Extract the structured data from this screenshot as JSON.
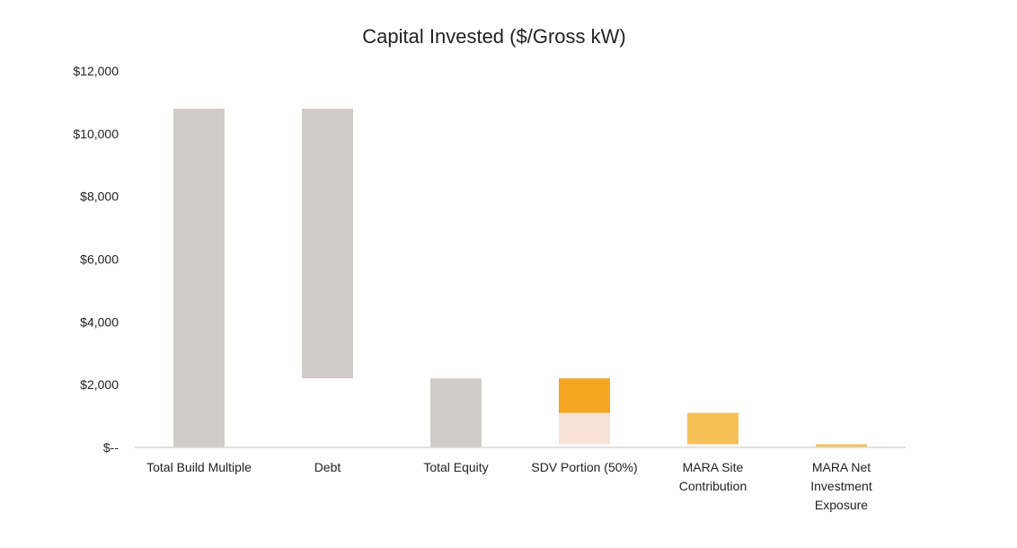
{
  "chart_data": {
    "type": "bar",
    "title": "Capital Invested ($/Gross kW)",
    "xlabel": "",
    "ylabel": "",
    "ylim": [
      0,
      12000
    ],
    "y_tick_labels": [
      "$--",
      "$2,000",
      "$4,000",
      "$6,000",
      "$8,000",
      "$10,000",
      "$12,000"
    ],
    "y_tick_values": [
      0,
      2000,
      4000,
      6000,
      8000,
      10000,
      12000
    ],
    "grid": false,
    "legend": "none",
    "categories": [
      [
        "Total Build Multiple"
      ],
      [
        "Debt"
      ],
      [
        "Total Equity"
      ],
      [
        "SDV Portion (50%)"
      ],
      [
        "MARA Site",
        "Contribution"
      ],
      [
        "MARA Net",
        "Investment",
        "Exposure"
      ]
    ],
    "bars": [
      {
        "segments": [
          {
            "from": 0,
            "to": 10800,
            "color": "#d0ccc9"
          }
        ]
      },
      {
        "segments": [
          {
            "from": 2200,
            "to": 10800,
            "color": "#d0ccc9"
          }
        ]
      },
      {
        "segments": [
          {
            "from": 0,
            "to": 2200,
            "color": "#d0ccc9"
          }
        ]
      },
      {
        "segments": [
          {
            "from": 100,
            "to": 1100,
            "color": "#f8e2d6"
          },
          {
            "from": 1100,
            "to": 2200,
            "color": "#f4a521"
          }
        ]
      },
      {
        "segments": [
          {
            "from": 100,
            "to": 1100,
            "color": "#f5c058"
          }
        ]
      },
      {
        "segments": [
          {
            "from": 0,
            "to": 100,
            "color": "#f5c058"
          }
        ]
      }
    ],
    "axis_color": "#d9d9d9"
  }
}
